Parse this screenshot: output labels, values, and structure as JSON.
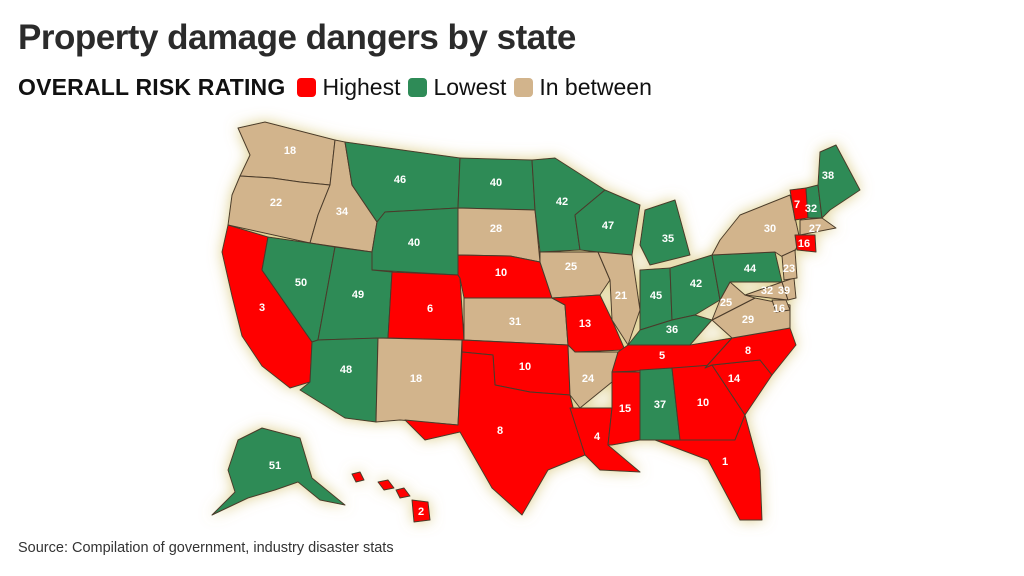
{
  "title": "Property damage dangers by state",
  "legend": {
    "heading": "OVERALL RISK RATING",
    "items": [
      {
        "label": "Highest",
        "color": "#ff0000"
      },
      {
        "label": "Lowest",
        "color": "#2e8b57"
      },
      {
        "label": "In between",
        "color": "#d2b48c"
      }
    ]
  },
  "source": "Source: Compilation of government, industry disaster stats",
  "map": {
    "colors": {
      "high": "#ff0000",
      "low": "#2e8b57",
      "mid": "#d2b48c",
      "border": "#4a3a2a"
    },
    "states": {
      "WA": {
        "rank": "18",
        "risk": "mid"
      },
      "OR": {
        "rank": "22",
        "risk": "mid"
      },
      "CA": {
        "rank": "3",
        "risk": "high"
      },
      "ID": {
        "rank": "34",
        "risk": "mid"
      },
      "NV": {
        "rank": "50",
        "risk": "low"
      },
      "MT": {
        "rank": "46",
        "risk": "low"
      },
      "WY": {
        "rank": "40",
        "risk": "low"
      },
      "UT": {
        "rank": "49",
        "risk": "low"
      },
      "AZ": {
        "rank": "48",
        "risk": "low"
      },
      "CO": {
        "rank": "6",
        "risk": "high"
      },
      "NM": {
        "rank": "18",
        "risk": "mid"
      },
      "ND": {
        "rank": "40",
        "risk": "low"
      },
      "SD": {
        "rank": "28",
        "risk": "mid"
      },
      "NE": {
        "rank": "10",
        "risk": "high"
      },
      "KS": {
        "rank": "31",
        "risk": "mid"
      },
      "OK": {
        "rank": "10",
        "risk": "high"
      },
      "TX": {
        "rank": "8",
        "risk": "high"
      },
      "MN": {
        "rank": "42",
        "risk": "low"
      },
      "IA": {
        "rank": "25",
        "risk": "mid"
      },
      "MO": {
        "rank": "13",
        "risk": "high"
      },
      "AR": {
        "rank": "24",
        "risk": "mid"
      },
      "LA": {
        "rank": "4",
        "risk": "high"
      },
      "WI": {
        "rank": "47",
        "risk": "low"
      },
      "IL": {
        "rank": "21",
        "risk": "mid"
      },
      "MI": {
        "rank": "35",
        "risk": "low"
      },
      "IN": {
        "rank": "45",
        "risk": "low"
      },
      "OH": {
        "rank": "42",
        "risk": "low"
      },
      "KY": {
        "rank": "36",
        "risk": "low"
      },
      "TN": {
        "rank": "5",
        "risk": "high"
      },
      "MS": {
        "rank": "15",
        "risk": "high"
      },
      "AL": {
        "rank": "37",
        "risk": "low"
      },
      "GA": {
        "rank": "10",
        "risk": "high"
      },
      "FL": {
        "rank": "1",
        "risk": "high"
      },
      "SC": {
        "rank": "14",
        "risk": "high"
      },
      "NC": {
        "rank": "8",
        "risk": "high"
      },
      "VA": {
        "rank": "29",
        "risk": "mid"
      },
      "WV": {
        "rank": "25",
        "risk": "mid"
      },
      "PA": {
        "rank": "44",
        "risk": "low"
      },
      "NY": {
        "rank": "30",
        "risk": "mid"
      },
      "MD": {
        "rank": "32",
        "risk": "mid"
      },
      "DE": {
        "rank": "39",
        "risk": "mid"
      },
      "NJ": {
        "rank": "23",
        "risk": "mid"
      },
      "DC": {
        "rank": "16",
        "risk": "mid"
      },
      "VT": {
        "rank": "7",
        "risk": "high"
      },
      "NH": {
        "rank": "32",
        "risk": "low"
      },
      "ME": {
        "rank": "38",
        "risk": "low"
      },
      "MA": {
        "rank": "27",
        "risk": "mid"
      },
      "CT": {
        "rank": "16",
        "risk": "high"
      },
      "AK": {
        "rank": "51",
        "risk": "low"
      },
      "HI": {
        "rank": "2",
        "risk": "high"
      }
    }
  }
}
